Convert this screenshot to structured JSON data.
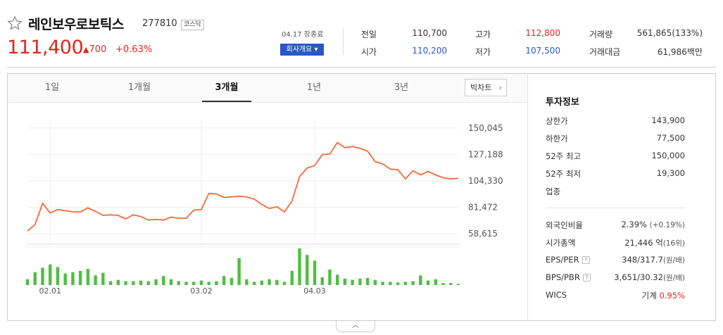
{
  "stock": {
    "name": "레인보우로보틱스",
    "code": "277810",
    "market": "코스닥",
    "price": "111,400",
    "change_arrow": "▲",
    "change": "700",
    "change_rate": "+0.63%"
  },
  "header": {
    "asof": "04.17 장종료",
    "company_button": "회사개요 ▾"
  },
  "quote": {
    "prev_close_label": "전일",
    "prev_close": "110,700",
    "open_label": "시가",
    "open": "110,200",
    "high_label": "고가",
    "high": "112,800",
    "low_label": "저가",
    "low": "107,500",
    "volume_label": "거래량",
    "volume": "561,865(133%)",
    "value_label": "거래대금",
    "value": "61,986백만"
  },
  "tabs": [
    {
      "label": "1일",
      "active": false
    },
    {
      "label": "1개월",
      "active": false
    },
    {
      "label": "3개월",
      "active": true
    },
    {
      "label": "1년",
      "active": false
    },
    {
      "label": "3년",
      "active": false
    }
  ],
  "bigchart_label": "빅차트",
  "invest": {
    "title": "투자정보",
    "upper_limit_label": "상한가",
    "upper_limit": "143,900",
    "lower_limit_label": "하한가",
    "lower_limit": "77,500",
    "high52_label": "52주 최고",
    "high52": "150,000",
    "low52_label": "52주 최저",
    "low52": "19,300",
    "sector_label": "업종",
    "foreign_label": "외국인비율",
    "foreign": "2.39%",
    "foreign_change": "(+0.19%)",
    "mcap_label": "시가총액",
    "mcap": "21,446 억",
    "mcap_rank": "(16위)",
    "eps_per_label": "EPS/PER",
    "eps_per": "348/317.7",
    "eps_per_unit": "(원/배)",
    "bps_pbr_label": "BPS/PBR",
    "bps_pbr": "3,651/30.32",
    "bps_pbr_unit": "(원/배)",
    "wics_label": "WICS",
    "wics": "기계",
    "wics_rate": "0.95%"
  },
  "colors": {
    "up": "#e1261c",
    "down": "#2a57c6",
    "line": "#f26b3a",
    "volume": "#4cbf3f"
  },
  "chart_data": {
    "type": "line",
    "x_tick_labels": [
      "02.01",
      "03.02",
      "04.03"
    ],
    "x_tick_index": [
      3,
      23,
      38
    ],
    "y_ticks": [
      150045,
      127188,
      104330,
      81472,
      58615
    ],
    "ylim": [
      52000,
      153000
    ],
    "series": [
      {
        "values": [
          61000,
          66500,
          85000,
          76500,
          79500,
          78500,
          77500,
          77500,
          81000,
          78000,
          74500,
          75000,
          74500,
          71500,
          75000,
          73500,
          70500,
          71000,
          70500,
          73000,
          72000,
          72000,
          79000,
          79500,
          93500,
          93000,
          90000,
          90500,
          91000,
          90500,
          88500,
          84000,
          80500,
          82000,
          77500,
          87000,
          108000,
          115500,
          117500,
          127000,
          127500,
          137500,
          133000,
          134000,
          132500,
          130000,
          121000,
          119000,
          114500,
          114000,
          106000,
          113000,
          109500,
          112500,
          109500,
          107000,
          106000,
          106500
        ]
      }
    ],
    "volume_values": [
      9,
      20,
      27,
      32,
      28,
      18,
      20,
      22,
      25,
      15,
      19,
      6,
      8,
      6,
      6,
      7,
      6,
      9,
      14,
      9,
      6,
      5,
      5,
      7,
      5,
      6,
      14,
      11,
      42,
      9,
      5,
      7,
      9,
      8,
      5,
      22,
      57,
      47,
      38,
      12,
      24,
      16,
      10,
      8,
      10,
      11,
      8,
      5,
      5,
      4,
      5,
      6,
      15,
      7,
      9,
      3,
      3,
      2
    ]
  }
}
